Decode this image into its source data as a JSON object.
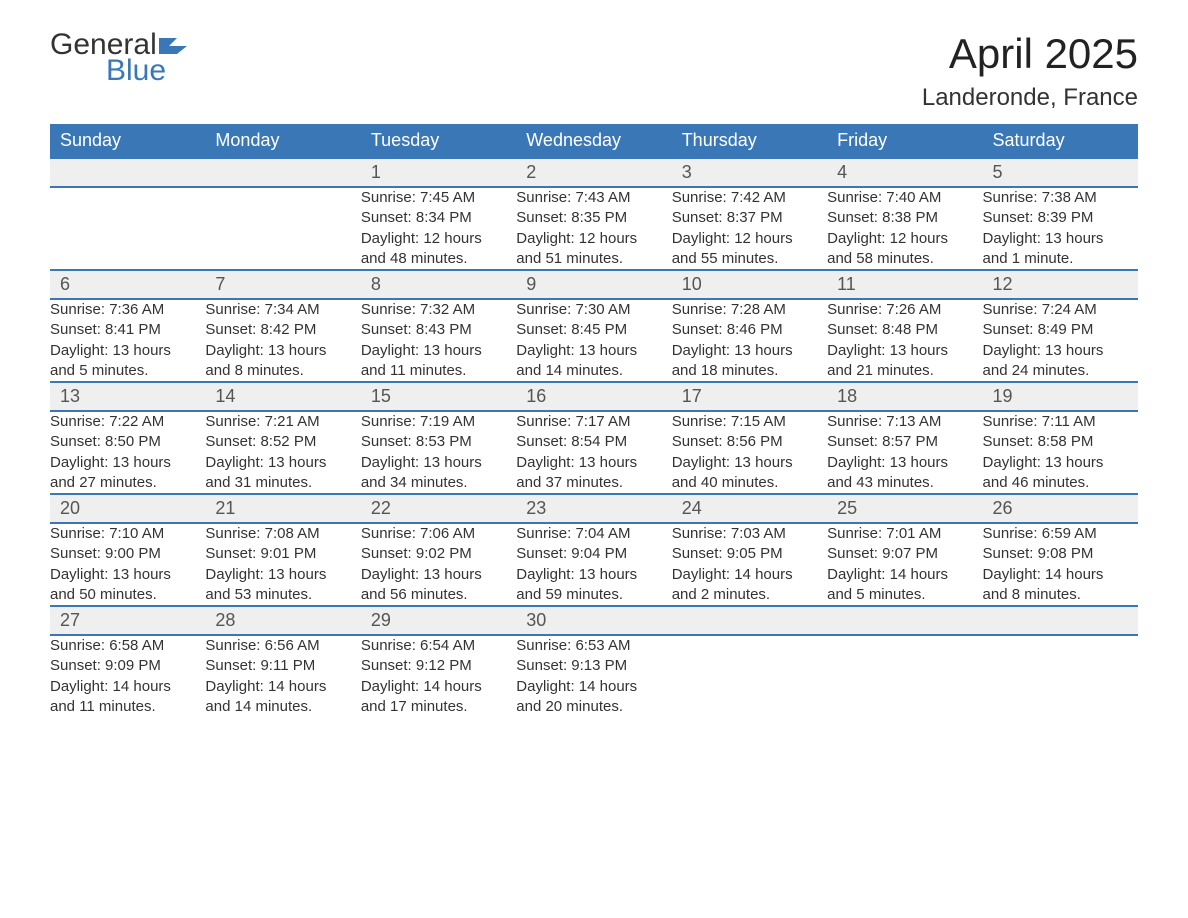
{
  "logo": {
    "word1": "General",
    "word2": "Blue"
  },
  "title": "April 2025",
  "location": "Landeronde, France",
  "colors": {
    "header_bg": "#3a77b7",
    "header_text": "#ffffff",
    "daynum_bg": "#efefef",
    "row_border": "#3a77b7",
    "body_text": "#333333",
    "logo_blue": "#3a77b7"
  },
  "weekdays": [
    "Sunday",
    "Monday",
    "Tuesday",
    "Wednesday",
    "Thursday",
    "Friday",
    "Saturday"
  ],
  "weeks": [
    [
      null,
      null,
      {
        "n": "1",
        "sr": "Sunrise: 7:45 AM",
        "ss": "Sunset: 8:34 PM",
        "d1": "Daylight: 12 hours",
        "d2": "and 48 minutes."
      },
      {
        "n": "2",
        "sr": "Sunrise: 7:43 AM",
        "ss": "Sunset: 8:35 PM",
        "d1": "Daylight: 12 hours",
        "d2": "and 51 minutes."
      },
      {
        "n": "3",
        "sr": "Sunrise: 7:42 AM",
        "ss": "Sunset: 8:37 PM",
        "d1": "Daylight: 12 hours",
        "d2": "and 55 minutes."
      },
      {
        "n": "4",
        "sr": "Sunrise: 7:40 AM",
        "ss": "Sunset: 8:38 PM",
        "d1": "Daylight: 12 hours",
        "d2": "and 58 minutes."
      },
      {
        "n": "5",
        "sr": "Sunrise: 7:38 AM",
        "ss": "Sunset: 8:39 PM",
        "d1": "Daylight: 13 hours",
        "d2": "and 1 minute."
      }
    ],
    [
      {
        "n": "6",
        "sr": "Sunrise: 7:36 AM",
        "ss": "Sunset: 8:41 PM",
        "d1": "Daylight: 13 hours",
        "d2": "and 5 minutes."
      },
      {
        "n": "7",
        "sr": "Sunrise: 7:34 AM",
        "ss": "Sunset: 8:42 PM",
        "d1": "Daylight: 13 hours",
        "d2": "and 8 minutes."
      },
      {
        "n": "8",
        "sr": "Sunrise: 7:32 AM",
        "ss": "Sunset: 8:43 PM",
        "d1": "Daylight: 13 hours",
        "d2": "and 11 minutes."
      },
      {
        "n": "9",
        "sr": "Sunrise: 7:30 AM",
        "ss": "Sunset: 8:45 PM",
        "d1": "Daylight: 13 hours",
        "d2": "and 14 minutes."
      },
      {
        "n": "10",
        "sr": "Sunrise: 7:28 AM",
        "ss": "Sunset: 8:46 PM",
        "d1": "Daylight: 13 hours",
        "d2": "and 18 minutes."
      },
      {
        "n": "11",
        "sr": "Sunrise: 7:26 AM",
        "ss": "Sunset: 8:48 PM",
        "d1": "Daylight: 13 hours",
        "d2": "and 21 minutes."
      },
      {
        "n": "12",
        "sr": "Sunrise: 7:24 AM",
        "ss": "Sunset: 8:49 PM",
        "d1": "Daylight: 13 hours",
        "d2": "and 24 minutes."
      }
    ],
    [
      {
        "n": "13",
        "sr": "Sunrise: 7:22 AM",
        "ss": "Sunset: 8:50 PM",
        "d1": "Daylight: 13 hours",
        "d2": "and 27 minutes."
      },
      {
        "n": "14",
        "sr": "Sunrise: 7:21 AM",
        "ss": "Sunset: 8:52 PM",
        "d1": "Daylight: 13 hours",
        "d2": "and 31 minutes."
      },
      {
        "n": "15",
        "sr": "Sunrise: 7:19 AM",
        "ss": "Sunset: 8:53 PM",
        "d1": "Daylight: 13 hours",
        "d2": "and 34 minutes."
      },
      {
        "n": "16",
        "sr": "Sunrise: 7:17 AM",
        "ss": "Sunset: 8:54 PM",
        "d1": "Daylight: 13 hours",
        "d2": "and 37 minutes."
      },
      {
        "n": "17",
        "sr": "Sunrise: 7:15 AM",
        "ss": "Sunset: 8:56 PM",
        "d1": "Daylight: 13 hours",
        "d2": "and 40 minutes."
      },
      {
        "n": "18",
        "sr": "Sunrise: 7:13 AM",
        "ss": "Sunset: 8:57 PM",
        "d1": "Daylight: 13 hours",
        "d2": "and 43 minutes."
      },
      {
        "n": "19",
        "sr": "Sunrise: 7:11 AM",
        "ss": "Sunset: 8:58 PM",
        "d1": "Daylight: 13 hours",
        "d2": "and 46 minutes."
      }
    ],
    [
      {
        "n": "20",
        "sr": "Sunrise: 7:10 AM",
        "ss": "Sunset: 9:00 PM",
        "d1": "Daylight: 13 hours",
        "d2": "and 50 minutes."
      },
      {
        "n": "21",
        "sr": "Sunrise: 7:08 AM",
        "ss": "Sunset: 9:01 PM",
        "d1": "Daylight: 13 hours",
        "d2": "and 53 minutes."
      },
      {
        "n": "22",
        "sr": "Sunrise: 7:06 AM",
        "ss": "Sunset: 9:02 PM",
        "d1": "Daylight: 13 hours",
        "d2": "and 56 minutes."
      },
      {
        "n": "23",
        "sr": "Sunrise: 7:04 AM",
        "ss": "Sunset: 9:04 PM",
        "d1": "Daylight: 13 hours",
        "d2": "and 59 minutes."
      },
      {
        "n": "24",
        "sr": "Sunrise: 7:03 AM",
        "ss": "Sunset: 9:05 PM",
        "d1": "Daylight: 14 hours",
        "d2": "and 2 minutes."
      },
      {
        "n": "25",
        "sr": "Sunrise: 7:01 AM",
        "ss": "Sunset: 9:07 PM",
        "d1": "Daylight: 14 hours",
        "d2": "and 5 minutes."
      },
      {
        "n": "26",
        "sr": "Sunrise: 6:59 AM",
        "ss": "Sunset: 9:08 PM",
        "d1": "Daylight: 14 hours",
        "d2": "and 8 minutes."
      }
    ],
    [
      {
        "n": "27",
        "sr": "Sunrise: 6:58 AM",
        "ss": "Sunset: 9:09 PM",
        "d1": "Daylight: 14 hours",
        "d2": "and 11 minutes."
      },
      {
        "n": "28",
        "sr": "Sunrise: 6:56 AM",
        "ss": "Sunset: 9:11 PM",
        "d1": "Daylight: 14 hours",
        "d2": "and 14 minutes."
      },
      {
        "n": "29",
        "sr": "Sunrise: 6:54 AM",
        "ss": "Sunset: 9:12 PM",
        "d1": "Daylight: 14 hours",
        "d2": "and 17 minutes."
      },
      {
        "n": "30",
        "sr": "Sunrise: 6:53 AM",
        "ss": "Sunset: 9:13 PM",
        "d1": "Daylight: 14 hours",
        "d2": "and 20 minutes."
      },
      null,
      null,
      null
    ]
  ]
}
